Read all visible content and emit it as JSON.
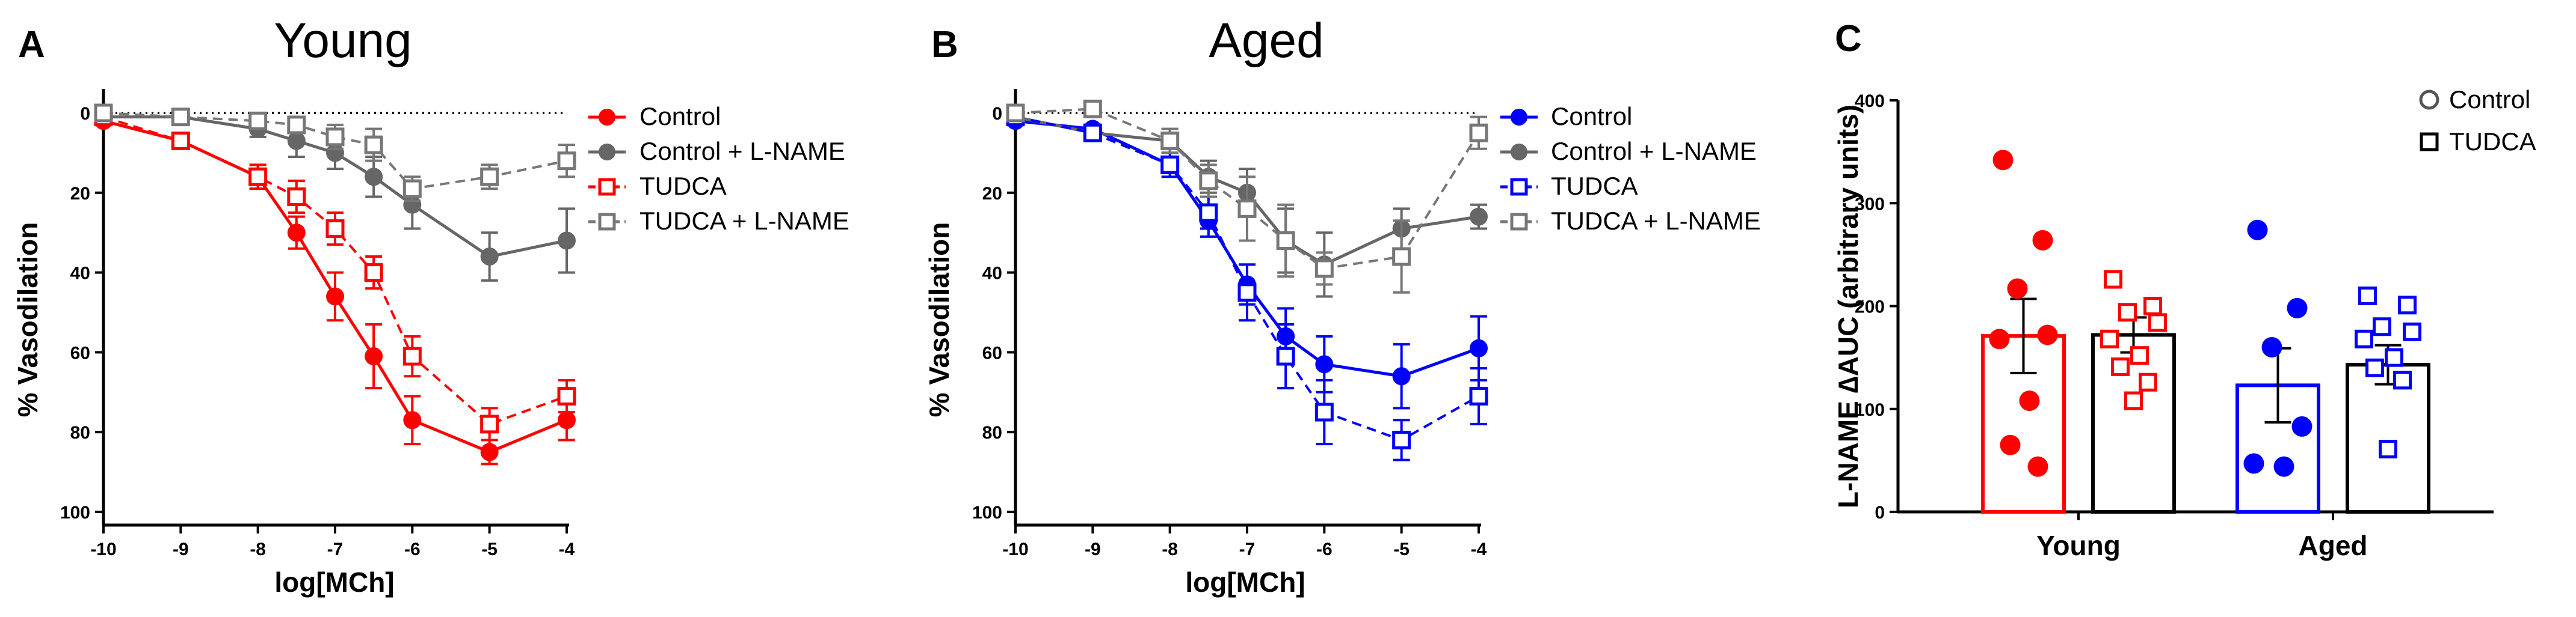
{
  "chart_data": [
    {
      "panel_letter": "A",
      "type": "line",
      "title": "Young",
      "xlabel": "log[MCh]",
      "ylabel": "% Vasodilation",
      "xlim": [
        -10,
        -4
      ],
      "ylim": [
        0,
        100
      ],
      "y_inverted": true,
      "xticks": [
        "-10",
        "-9",
        "-8",
        "-7",
        "-6",
        "-5",
        "-4"
      ],
      "yticks": [
        "0",
        "20",
        "40",
        "60",
        "80",
        "100"
      ],
      "x": [
        -10,
        -9,
        -8,
        -7.5,
        -7,
        -6.5,
        -6,
        -5,
        -4
      ],
      "legend_position": "top-right",
      "reference_line": {
        "y": 0,
        "style": "dotted"
      },
      "series": [
        {
          "name": "Control",
          "color": "#ff0000",
          "marker": "filled-circle",
          "linestyle": "solid",
          "values": [
            2,
            7,
            16,
            30,
            46,
            61,
            77,
            85,
            77
          ],
          "errors": [
            1,
            1,
            3,
            4,
            6,
            8,
            6,
            3,
            5
          ]
        },
        {
          "name": "Control + L-NAME",
          "color": "#666666",
          "marker": "filled-circle",
          "linestyle": "solid",
          "values": [
            1,
            1,
            4,
            7,
            10,
            16,
            23,
            36,
            32
          ],
          "errors": [
            1,
            1,
            2,
            4,
            4,
            5,
            6,
            6,
            8
          ]
        },
        {
          "name": "TUDCA",
          "color": "#ff0000",
          "marker": "open-square",
          "linestyle": "dashed",
          "values": [
            1,
            7,
            16,
            21,
            29,
            40,
            61,
            78,
            71
          ],
          "errors": [
            1,
            1,
            3,
            4,
            4,
            4,
            5,
            4,
            4
          ]
        },
        {
          "name": "TUDCA + L-NAME",
          "color": "#777777",
          "marker": "open-square",
          "linestyle": "dashed",
          "values": [
            0,
            1,
            2,
            3,
            6,
            8,
            19,
            16,
            12
          ],
          "errors": [
            1,
            1,
            2,
            2,
            3,
            4,
            3,
            3,
            4
          ]
        }
      ]
    },
    {
      "panel_letter": "B",
      "type": "line",
      "title": "Aged",
      "xlabel": "log[MCh]",
      "ylabel": "% Vasodilation",
      "xlim": [
        -10,
        -4
      ],
      "ylim": [
        0,
        100
      ],
      "y_inverted": true,
      "xticks": [
        "-10",
        "-9",
        "-8",
        "-7",
        "-6",
        "-5",
        "-4"
      ],
      "yticks": [
        "0",
        "20",
        "40",
        "60",
        "80",
        "100"
      ],
      "x": [
        -10,
        -9,
        -8,
        -7.5,
        -7,
        -6.5,
        -6,
        -5,
        -4
      ],
      "legend_position": "top-right",
      "reference_line": {
        "y": 0,
        "style": "dotted"
      },
      "series": [
        {
          "name": "Control",
          "color": "#0000ff",
          "marker": "filled-circle",
          "linestyle": "solid",
          "values": [
            2,
            4,
            13,
            27,
            43,
            56,
            63,
            66,
            59
          ],
          "errors": [
            1,
            1,
            2,
            4,
            5,
            7,
            7,
            8,
            8
          ]
        },
        {
          "name": "Control + L-NAME",
          "color": "#666666",
          "marker": "filled-circle",
          "linestyle": "solid",
          "values": [
            1,
            5,
            7,
            16,
            20,
            32,
            38,
            29,
            26
          ],
          "errors": [
            1,
            1,
            3,
            4,
            6,
            8,
            8,
            5,
            3
          ]
        },
        {
          "name": "TUDCA",
          "color": "#0000ff",
          "marker": "open-square",
          "linestyle": "dashed",
          "values": [
            1,
            5,
            13,
            25,
            45,
            61,
            75,
            82,
            71
          ],
          "errors": [
            1,
            1,
            3,
            4,
            7,
            8,
            8,
            5,
            7
          ]
        },
        {
          "name": "TUDCA + L-NAME",
          "color": "#777777",
          "marker": "open-square",
          "linestyle": "dashed",
          "values": [
            0,
            -1,
            7,
            17,
            24,
            32,
            39,
            36,
            5
          ],
          "errors": [
            1,
            1,
            3,
            4,
            8,
            9,
            4,
            9,
            4
          ]
        }
      ]
    },
    {
      "panel_letter": "C",
      "type": "bar",
      "ylabel": "L-NAME ∆AUC (arbitrary units)",
      "ylim": [
        0,
        400
      ],
      "yticks": [
        "0",
        "100",
        "200",
        "300",
        "400"
      ],
      "categories": [
        "Young",
        "Aged"
      ],
      "legend_position": "top-right",
      "legend": [
        {
          "name": "Control",
          "marker": "open-circle"
        },
        {
          "name": "TUDCA",
          "marker": "open-square"
        }
      ],
      "series": [
        {
          "name": "Control",
          "marker": "filled-circle",
          "values": [
            171,
            123
          ],
          "errors": [
            36,
            36
          ],
          "colors": [
            "#ff0000",
            "#0000ff"
          ],
          "points": [
            [
              342,
              264,
              217,
              172,
              168,
              108,
              65,
              44
            ],
            [
              274,
              198,
              160,
              83,
              47,
              44
            ]
          ]
        },
        {
          "name": "TUDCA",
          "marker": "open-square",
          "values": [
            172,
            143
          ],
          "errors": [
            17,
            19
          ],
          "colors": [
            "#ff0000",
            "#0000ff"
          ],
          "points": [
            [
              226,
              200,
              194,
              184,
              168,
              152,
              141,
              126,
              108
            ],
            [
              210,
              201,
              180,
              175,
              168,
              150,
              140,
              128,
              61
            ]
          ]
        }
      ]
    }
  ]
}
